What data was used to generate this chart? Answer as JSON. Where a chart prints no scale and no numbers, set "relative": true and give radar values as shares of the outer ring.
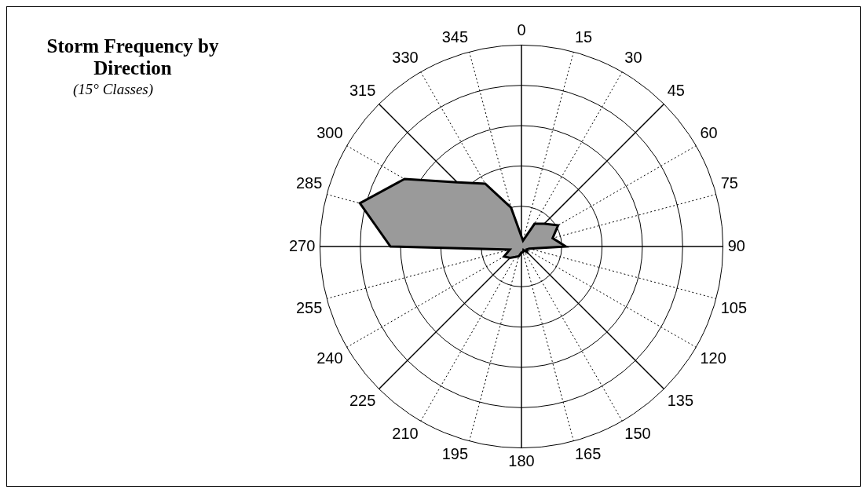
{
  "chart_data": {
    "type": "radar",
    "title": "Storm Frequency by Direction",
    "subtitle": "(15° Classes)",
    "relative": true,
    "grid": true,
    "legend": false,
    "categories": [
      "0",
      "15",
      "30",
      "45",
      "60",
      "75",
      "90",
      "105",
      "120",
      "135",
      "150",
      "165",
      "180",
      "195",
      "210",
      "225",
      "240",
      "255",
      "270",
      "285",
      "300",
      "315",
      "330",
      "345"
    ],
    "series": [
      {
        "color": "#9a9a9a",
        "values": [
          0.05,
          0.03,
          0.13,
          0.16,
          0.21,
          0.16,
          0.22,
          0.04,
          0.03,
          0.04,
          0.02,
          0.03,
          0.03,
          0.05,
          0.06,
          0.08,
          0.1,
          0.06,
          0.65,
          0.83,
          0.67,
          0.45,
          0.36,
          0.2
        ]
      }
    ]
  }
}
